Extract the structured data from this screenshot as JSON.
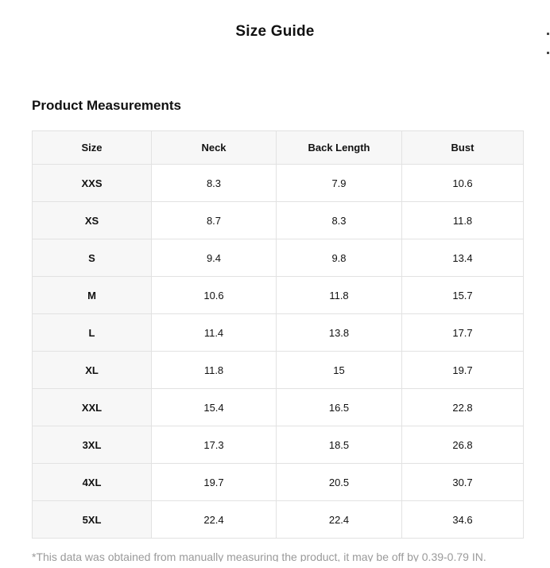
{
  "page": {
    "title": "Size Guide"
  },
  "section": {
    "heading": "Product Measurements"
  },
  "table": {
    "columns": [
      "Size",
      "Neck",
      "Back Length",
      "Bust"
    ],
    "rows": [
      [
        "XXS",
        "8.3",
        "7.9",
        "10.6"
      ],
      [
        "XS",
        "8.7",
        "8.3",
        "11.8"
      ],
      [
        "S",
        "9.4",
        "9.8",
        "13.4"
      ],
      [
        "M",
        "10.6",
        "11.8",
        "15.7"
      ],
      [
        "L",
        "11.4",
        "13.8",
        "17.7"
      ],
      [
        "XL",
        "11.8",
        "15",
        "19.7"
      ],
      [
        "XXL",
        "15.4",
        "16.5",
        "22.8"
      ],
      [
        "3XL",
        "17.3",
        "18.5",
        "26.8"
      ],
      [
        "4XL",
        "19.7",
        "20.5",
        "30.7"
      ],
      [
        "5XL",
        "22.4",
        "22.4",
        "34.6"
      ]
    ]
  },
  "footnote": {
    "text": "*This data was obtained from manually measuring the product, it may be off by 0.39-0.79 IN."
  },
  "colors": {
    "header_background": "#f7f7f7",
    "border": "#e2e2e2",
    "footnote_text": "#9a9a9a",
    "text": "#111111"
  }
}
